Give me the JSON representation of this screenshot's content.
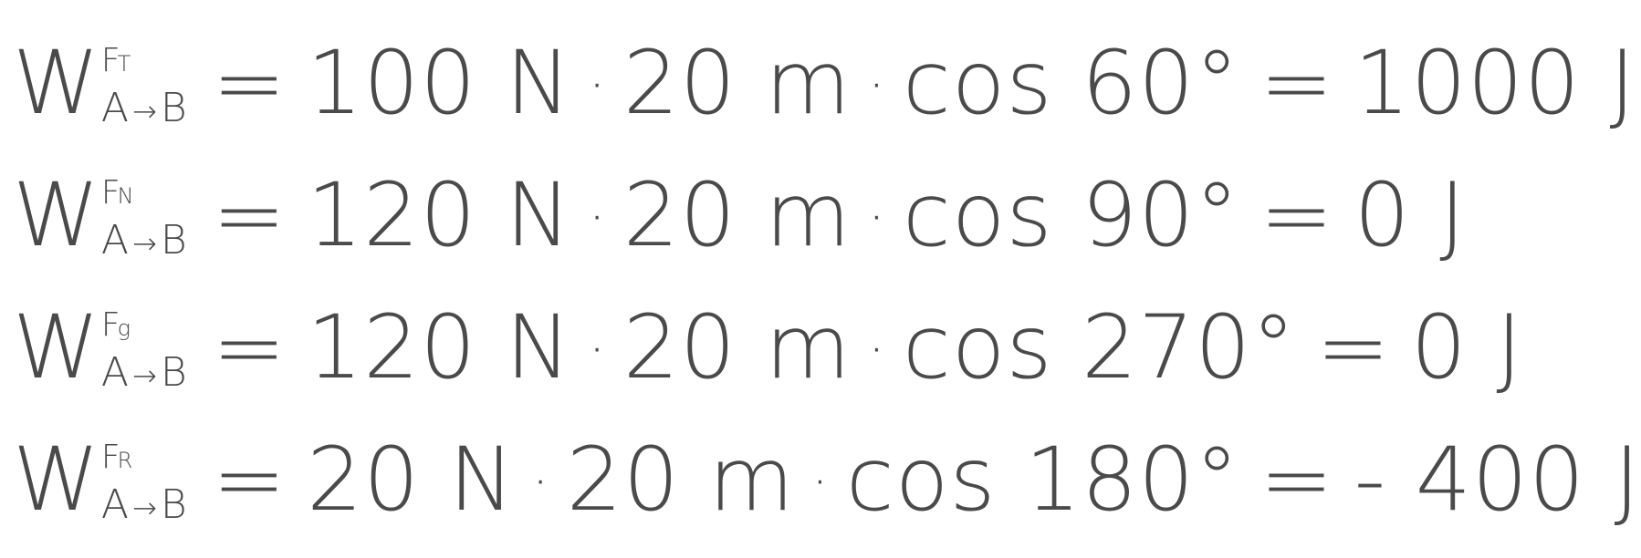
{
  "equations": [
    {
      "symbol": "W",
      "force": "F",
      "force_sub": "T",
      "path_from": "A",
      "arrow": "→",
      "path_to": "B",
      "equals": "=",
      "force_value": "100 N",
      "dot1": "·",
      "distance": "20 m",
      "dot2": "·",
      "cos_term": "cos 60°",
      "equals2": "=",
      "result": "1000 J"
    },
    {
      "symbol": "W",
      "force": "F",
      "force_sub": "N",
      "path_from": "A",
      "arrow": "→",
      "path_to": "B",
      "equals": "=",
      "force_value": "120 N",
      "dot1": "·",
      "distance": "20 m",
      "dot2": "·",
      "cos_term": "cos 90°",
      "equals2": "=",
      "result": "0 J"
    },
    {
      "symbol": "W",
      "force": "F",
      "force_sub": "g",
      "path_from": "A",
      "arrow": "→",
      "path_to": "B",
      "equals": "=",
      "force_value": "120 N",
      "dot1": "·",
      "distance": "20 m",
      "dot2": "·",
      "cos_term": "cos 270°",
      "equals2": "=",
      "result": "0 J"
    },
    {
      "symbol": "W",
      "force": "F",
      "force_sub": "R",
      "path_from": "A",
      "arrow": "→",
      "path_to": "B",
      "equals": "=",
      "force_value": "20 N",
      "dot1": "·",
      "distance": "20 m",
      "dot2": "·",
      "cos_term": "cos 180°",
      "equals2": "=",
      "result": "- 400 J"
    }
  ]
}
